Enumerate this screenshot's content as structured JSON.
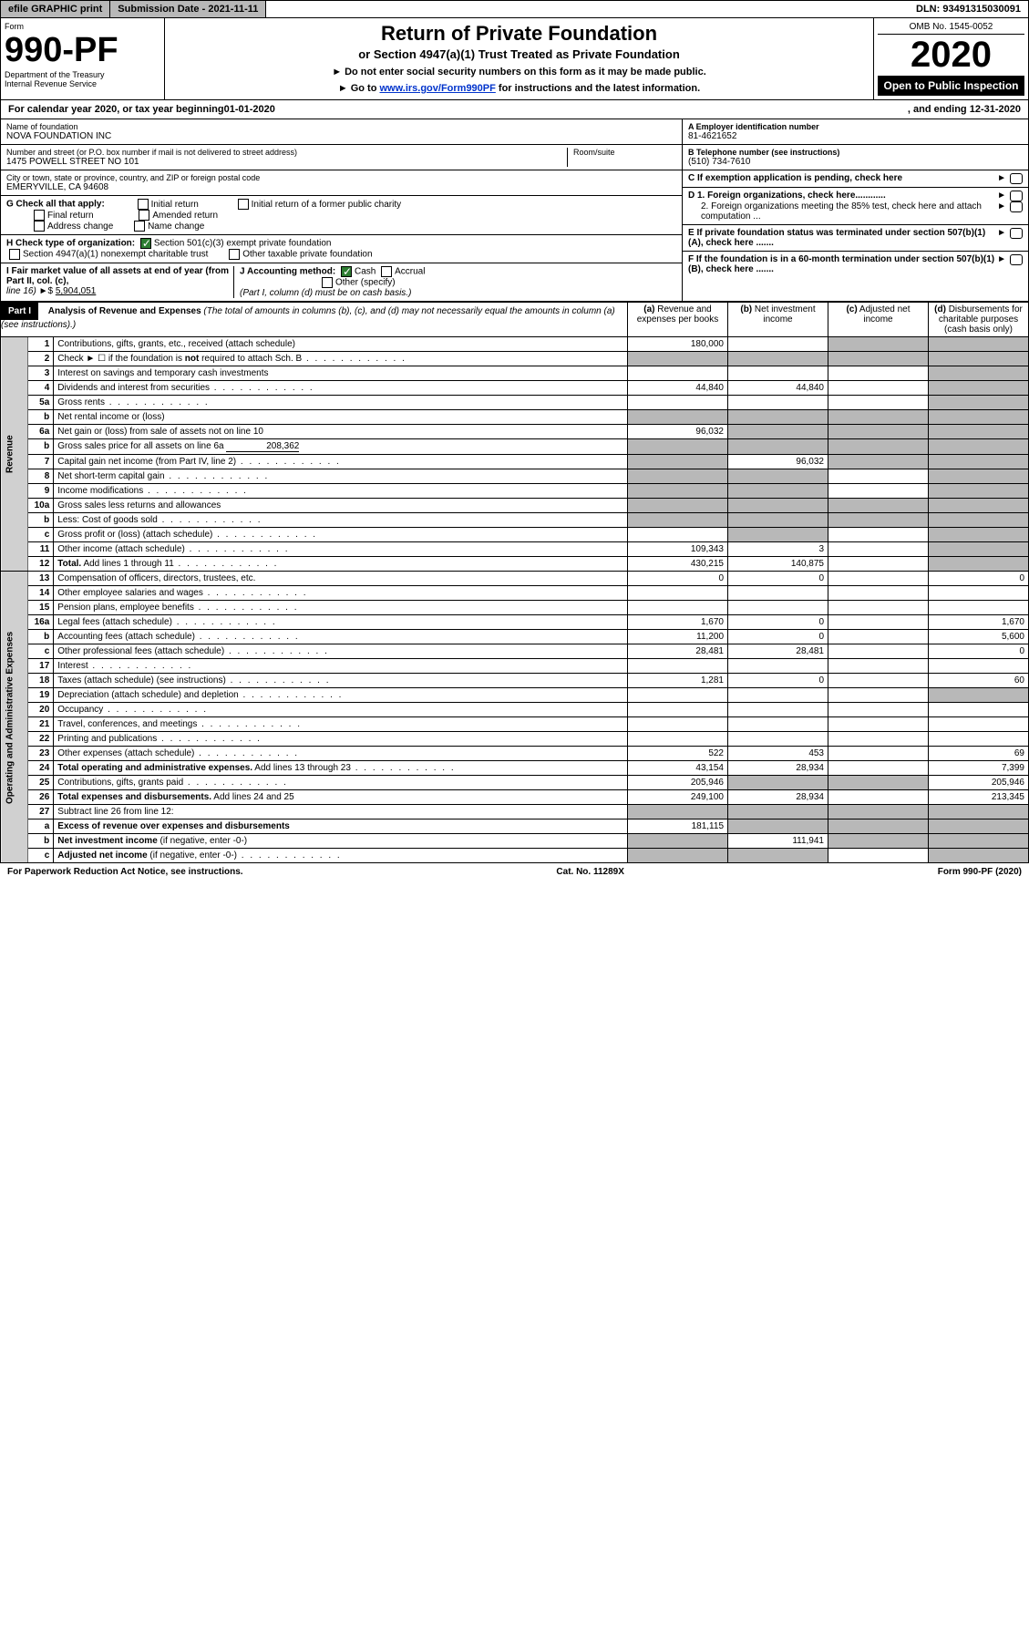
{
  "topbar": {
    "efile": "efile GRAPHIC print",
    "subdate_label": "Submission Date - ",
    "subdate": "2021-11-11",
    "dln_label": "DLN: ",
    "dln": "93491315030091"
  },
  "header": {
    "form_label": "Form",
    "form_no": "990-PF",
    "dept": "Department of the Treasury",
    "irs": "Internal Revenue Service",
    "title": "Return of Private Foundation",
    "subtitle": "or Section 4947(a)(1) Trust Treated as Private Foundation",
    "instr1": "Do not enter social security numbers on this form as it may be made public.",
    "instr2_pre": "Go to ",
    "instr2_link": "www.irs.gov/Form990PF",
    "instr2_post": " for instructions and the latest information.",
    "omb": "OMB No. 1545-0052",
    "year": "2020",
    "open": "Open to Public Inspection"
  },
  "cal": {
    "text1": "For calendar year 2020, or tax year beginning ",
    "begin": "01-01-2020",
    "text2": ", and ending ",
    "end": "12-31-2020"
  },
  "org": {
    "name_label": "Name of foundation",
    "name": "NOVA FOUNDATION INC",
    "addr_label": "Number and street (or P.O. box number if mail is not delivered to street address)",
    "addr": "1475 POWELL STREET NO 101",
    "room_label": "Room/suite",
    "city_label": "City or town, state or province, country, and ZIP or foreign postal code",
    "city": "EMERYVILLE, CA  94608",
    "ein_label": "A Employer identification number",
    "ein": "81-4621652",
    "phone_label": "B Telephone number (see instructions)",
    "phone": "(510) 734-7610",
    "c_label": "C If exemption application is pending, check here",
    "d1": "D 1. Foreign organizations, check here............",
    "d2": "2. Foreign organizations meeting the 85% test, check here and attach computation ...",
    "e_label": "E  If private foundation status was terminated under section 507(b)(1)(A), check here .......",
    "f_label": "F  If the foundation is in a 60-month termination under section 507(b)(1)(B), check here .......",
    "g_label": "G Check all that apply:",
    "g_opts": [
      "Initial return",
      "Final return",
      "Address change",
      "Initial return of a former public charity",
      "Amended return",
      "Name change"
    ],
    "h_label": "H Check type of organization:",
    "h_opt1": "Section 501(c)(3) exempt private foundation",
    "h_opt2": "Section 4947(a)(1) nonexempt charitable trust",
    "h_opt3": "Other taxable private foundation",
    "i_label": "I Fair market value of all assets at end of year (from Part II, col. (c),",
    "i_line": "line 16)",
    "i_val": "5,904,051",
    "j_label": "J Accounting method:",
    "j_cash": "Cash",
    "j_accr": "Accrual",
    "j_other": "Other (specify)",
    "j_note": "(Part I, column (d) must be on cash basis.)"
  },
  "part1": {
    "label": "Part I",
    "title": "Analysis of Revenue and Expenses",
    "note": "(The total of amounts in columns (b), (c), and (d) may not necessarily equal the amounts in column (a) (see instructions).)",
    "col_a": "(a) Revenue and expenses per books",
    "col_b": "(b) Net investment income",
    "col_c": "(c) Adjusted net income",
    "col_d": "(d) Disbursements for charitable purposes (cash basis only)",
    "vlabel_rev": "Revenue",
    "vlabel_exp": "Operating and Administrative Expenses"
  },
  "rows": [
    {
      "n": "1",
      "d": "Contributions, gifts, grants, etc., received (attach schedule)",
      "a": "180,000",
      "b": "",
      "c_sh": true,
      "d_sh": true
    },
    {
      "n": "2",
      "d": "Check ► ☐ if the foundation is <b>not</b> required to attach Sch. B",
      "dots": true,
      "a_sh": true,
      "b_sh": true,
      "c_sh": true,
      "d_sh": true
    },
    {
      "n": "3",
      "d": "Interest on savings and temporary cash investments",
      "a": "",
      "b": "",
      "c": "",
      "d_sh": true
    },
    {
      "n": "4",
      "d": "Dividends and interest from securities",
      "dots": true,
      "a": "44,840",
      "b": "44,840",
      "c": "",
      "d_sh": true
    },
    {
      "n": "5a",
      "d": "Gross rents",
      "dots": true,
      "a": "",
      "b": "",
      "c": "",
      "d_sh": true
    },
    {
      "n": "b",
      "d": "Net rental income or (loss)",
      "inset": true,
      "a_sh": true,
      "b_sh": true,
      "c_sh": true,
      "d_sh": true
    },
    {
      "n": "6a",
      "d": "Net gain or (loss) from sale of assets not on line 10",
      "a": "96,032",
      "b_sh": true,
      "c_sh": true,
      "d_sh": true
    },
    {
      "n": "b",
      "d": "Gross sales price for all assets on line 6a",
      "inset": true,
      "inline_val": "208,362",
      "a_sh": true,
      "b_sh": true,
      "c_sh": true,
      "d_sh": true
    },
    {
      "n": "7",
      "d": "Capital gain net income (from Part IV, line 2)",
      "dots": true,
      "a_sh": true,
      "b": "96,032",
      "c_sh": true,
      "d_sh": true
    },
    {
      "n": "8",
      "d": "Net short-term capital gain",
      "dots": true,
      "a_sh": true,
      "b_sh": true,
      "c": "",
      "d_sh": true
    },
    {
      "n": "9",
      "d": "Income modifications",
      "dots": true,
      "a_sh": true,
      "b_sh": true,
      "c": "",
      "d_sh": true
    },
    {
      "n": "10a",
      "d": "Gross sales less returns and allowances",
      "inset": true,
      "a_sh": true,
      "b_sh": true,
      "c_sh": true,
      "d_sh": true
    },
    {
      "n": "b",
      "d": "Less: Cost of goods sold",
      "dots": true,
      "inset": true,
      "a_sh": true,
      "b_sh": true,
      "c_sh": true,
      "d_sh": true
    },
    {
      "n": "c",
      "d": "Gross profit or (loss) (attach schedule)",
      "dots": true,
      "a": "",
      "b_sh": true,
      "c": "",
      "d_sh": true
    },
    {
      "n": "11",
      "d": "Other income (attach schedule)",
      "dots": true,
      "a": "109,343",
      "b": "3",
      "c": "",
      "d_sh": true
    },
    {
      "n": "12",
      "d": "<b>Total.</b> Add lines 1 through 11",
      "dots": true,
      "a": "430,215",
      "b": "140,875",
      "c": "",
      "d_sh": true
    }
  ],
  "exp_rows": [
    {
      "n": "13",
      "d": "Compensation of officers, directors, trustees, etc.",
      "a": "0",
      "b": "0",
      "c": "",
      "dd": "0"
    },
    {
      "n": "14",
      "d": "Other employee salaries and wages",
      "dots": true,
      "a": "",
      "b": "",
      "c": "",
      "dd": ""
    },
    {
      "n": "15",
      "d": "Pension plans, employee benefits",
      "dots": true,
      "a": "",
      "b": "",
      "c": "",
      "dd": ""
    },
    {
      "n": "16a",
      "d": "Legal fees (attach schedule)",
      "dots": true,
      "a": "1,670",
      "b": "0",
      "c": "",
      "dd": "1,670"
    },
    {
      "n": "b",
      "d": "Accounting fees (attach schedule)",
      "dots": true,
      "a": "11,200",
      "b": "0",
      "c": "",
      "dd": "5,600"
    },
    {
      "n": "c",
      "d": "Other professional fees (attach schedule)",
      "dots": true,
      "a": "28,481",
      "b": "28,481",
      "c": "",
      "dd": "0"
    },
    {
      "n": "17",
      "d": "Interest",
      "dots": true,
      "a": "",
      "b": "",
      "c": "",
      "dd": ""
    },
    {
      "n": "18",
      "d": "Taxes (attach schedule) (see instructions)",
      "dots": true,
      "a": "1,281",
      "b": "0",
      "c": "",
      "dd": "60"
    },
    {
      "n": "19",
      "d": "Depreciation (attach schedule) and depletion",
      "dots": true,
      "a": "",
      "b": "",
      "c": "",
      "d_sh": true
    },
    {
      "n": "20",
      "d": "Occupancy",
      "dots": true,
      "a": "",
      "b": "",
      "c": "",
      "dd": ""
    },
    {
      "n": "21",
      "d": "Travel, conferences, and meetings",
      "dots": true,
      "a": "",
      "b": "",
      "c": "",
      "dd": ""
    },
    {
      "n": "22",
      "d": "Printing and publications",
      "dots": true,
      "a": "",
      "b": "",
      "c": "",
      "dd": ""
    },
    {
      "n": "23",
      "d": "Other expenses (attach schedule)",
      "dots": true,
      "a": "522",
      "b": "453",
      "c": "",
      "dd": "69"
    },
    {
      "n": "24",
      "d": "<b>Total operating and administrative expenses.</b> Add lines 13 through 23",
      "dots": true,
      "a": "43,154",
      "b": "28,934",
      "c": "",
      "dd": "7,399"
    },
    {
      "n": "25",
      "d": "Contributions, gifts, grants paid",
      "dots": true,
      "a": "205,946",
      "b_sh": true,
      "c_sh": true,
      "dd": "205,946"
    },
    {
      "n": "26",
      "d": "<b>Total expenses and disbursements.</b> Add lines 24 and 25",
      "a": "249,100",
      "b": "28,934",
      "c": "",
      "dd": "213,345"
    },
    {
      "n": "27",
      "d": "Subtract line 26 from line 12:",
      "a_sh": true,
      "b_sh": true,
      "c_sh": true,
      "d_sh": true
    },
    {
      "n": "a",
      "d": "<b>Excess of revenue over expenses and disbursements</b>",
      "a": "181,115",
      "b_sh": true,
      "c_sh": true,
      "d_sh": true
    },
    {
      "n": "b",
      "d": "<b>Net investment income</b> (if negative, enter -0-)",
      "a_sh": true,
      "b": "111,941",
      "c_sh": true,
      "d_sh": true
    },
    {
      "n": "c",
      "d": "<b>Adjusted net income</b> (if negative, enter -0-)",
      "dots": true,
      "a_sh": true,
      "b_sh": true,
      "c": "",
      "d_sh": true
    }
  ],
  "footer": {
    "left": "For Paperwork Reduction Act Notice, see instructions.",
    "mid": "Cat. No. 11289X",
    "right": "Form 990-PF (2020)"
  }
}
